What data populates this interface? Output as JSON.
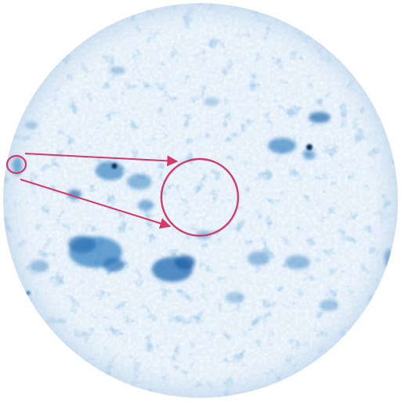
{
  "image": {
    "subject": "sun-disk",
    "colors": {
      "background": "#ffffff",
      "disk_base": "#e4eff9",
      "granulation_light": "#f6fbff",
      "granulation_mid": "#cfe3f4",
      "active_region": "#3b86c4",
      "active_region_dark": "#1f64a8",
      "sunspot": "#0d2f57",
      "annotation": "#d33a6a"
    }
  }
}
